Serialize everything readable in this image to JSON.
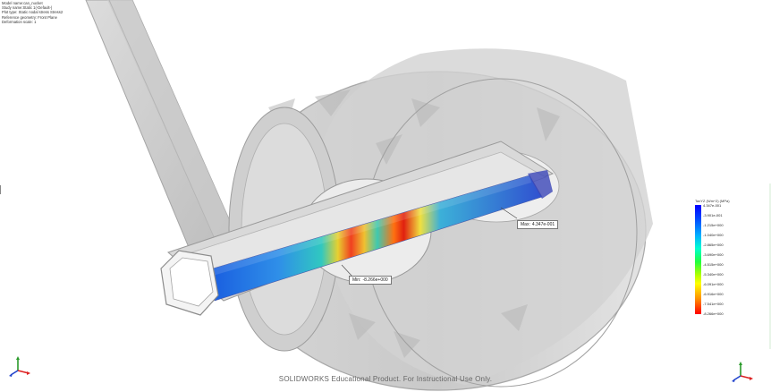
{
  "study_info": {
    "lines": [
      "Model name:can_nucket",
      "Study name:Static 1(-Default-)",
      "Plot type: Static nodal stress Stress2",
      "Reference geometry: Front Plane",
      "Deformation scale: 1"
    ]
  },
  "legend": {
    "title": "TaxYZ (N/m^2) (MPa)",
    "ticks": [
      "4.347e-001",
      "-3.901e-001",
      "-1.215e+000",
      "-1.040e+000",
      "-2.865e+000",
      "-3.690e+000",
      "-4.515e+000",
      "-5.340e+000",
      "-6.091e+000",
      "-6.916e+000",
      "-7.541e+000",
      "-8.266e+000"
    ],
    "gradient_colors": [
      "#0000ff",
      "#00b0ff",
      "#00ffd0",
      "#20ff40",
      "#ffff00",
      "#ff9000",
      "#ff0000"
    ]
  },
  "callouts": {
    "max": {
      "label": "Max:",
      "value": "4.347e-001"
    },
    "min": {
      "label": "Min:",
      "value": "-8.266e+000"
    }
  },
  "footer": {
    "text": "SOLIDWORKS Educational Product. For Instructional Use Only."
  },
  "colors": {
    "shell": "#cfcfcf",
    "shell_edge": "#9a9a9a",
    "background": "#ffffff"
  }
}
